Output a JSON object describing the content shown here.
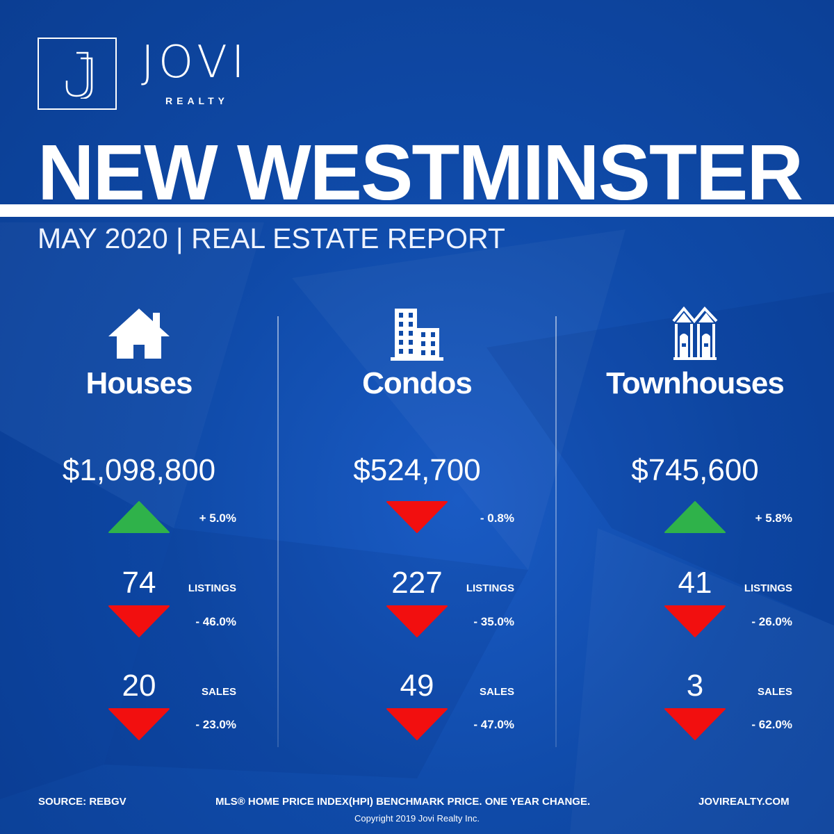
{
  "brand": {
    "name": "JOVI",
    "sub": "REALTY"
  },
  "title": "NEW WESTMINSTER",
  "subtitle": "MAY 2020 | REAL ESTATE REPORT",
  "colors": {
    "background": "#0f4aa8",
    "up": "#2fb24a",
    "down": "#f20f0f",
    "text": "#ffffff"
  },
  "columns": [
    {
      "icon": "house-icon",
      "category": "Houses",
      "price": "$1,098,800",
      "price_change": {
        "direction": "up",
        "value": "+ 5.0%"
      },
      "listings": {
        "value": "74",
        "label": "LISTINGS",
        "direction": "down",
        "change": "- 46.0%"
      },
      "sales": {
        "value": "20",
        "label": "SALES",
        "direction": "down",
        "change": "- 23.0%"
      }
    },
    {
      "icon": "condo-building-icon",
      "category": "Condos",
      "price": "$524,700",
      "price_change": {
        "direction": "down",
        "value": "- 0.8%"
      },
      "listings": {
        "value": "227",
        "label": "LISTINGS",
        "direction": "down",
        "change": "- 35.0%"
      },
      "sales": {
        "value": "49",
        "label": "SALES",
        "direction": "down",
        "change": "- 47.0%"
      }
    },
    {
      "icon": "townhouse-icon",
      "category": "Townhouses",
      "price": "$745,600",
      "price_change": {
        "direction": "up",
        "value": "+ 5.8%"
      },
      "listings": {
        "value": "41",
        "label": "LISTINGS",
        "direction": "down",
        "change": "- 26.0%"
      },
      "sales": {
        "value": "3",
        "label": "SALES",
        "direction": "down",
        "change": "- 62.0%"
      }
    }
  ],
  "footer": {
    "source": "SOURCE:  REBGV",
    "note": "MLS® HOME PRICE INDEX(HPI) BENCHMARK PRICE. ONE YEAR CHANGE.",
    "website": "JOVIREALTY.COM",
    "copyright": "Copyright 2019 Jovi Realty Inc."
  }
}
